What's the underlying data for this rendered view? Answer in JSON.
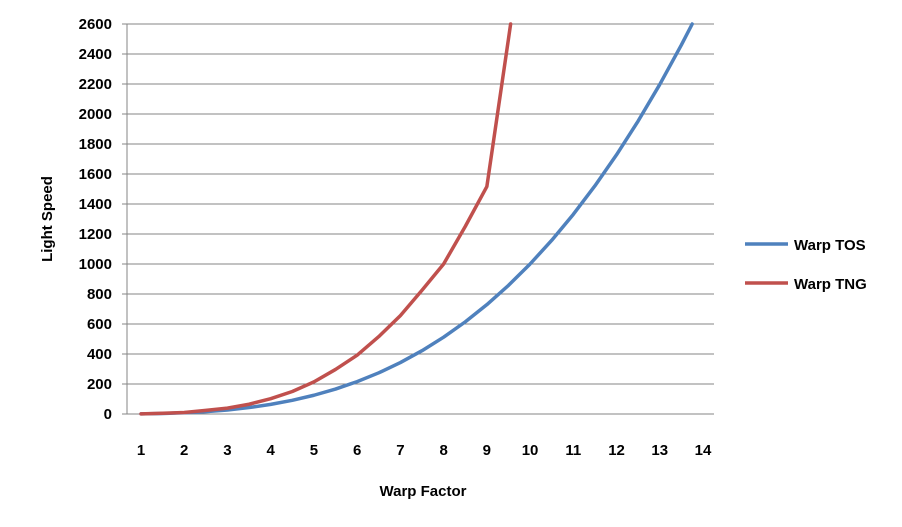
{
  "chart_data": {
    "type": "line",
    "xlabel": "Warp Factor",
    "ylabel": "Light Speed",
    "xlim": [
      1,
      14
    ],
    "ylim": [
      0,
      2600
    ],
    "x_ticks": [
      "1",
      "2",
      "3",
      "4",
      "5",
      "6",
      "7",
      "8",
      "9",
      "10",
      "11",
      "12",
      "13",
      "14"
    ],
    "y_ticks": [
      "0",
      "200",
      "400",
      "600",
      "800",
      "1000",
      "1200",
      "1400",
      "1600",
      "1800",
      "2000",
      "2200",
      "2400",
      "2600"
    ],
    "grid": true,
    "legend_position": "right",
    "series": [
      {
        "name": "Warp TOS",
        "color": "#4F81BD",
        "x": [
          1,
          1.5,
          2,
          2.5,
          3,
          3.5,
          4,
          4.5,
          5,
          5.5,
          6,
          6.5,
          7,
          7.5,
          8,
          8.5,
          9,
          9.5,
          10,
          10.5,
          11,
          11.5,
          12,
          12.5,
          13,
          13.5,
          13.75
        ],
        "y": [
          1,
          3.4,
          8,
          15.6,
          27,
          42.9,
          64,
          91.1,
          125,
          166.4,
          216,
          274.6,
          343,
          421.9,
          512,
          614.1,
          729,
          857.4,
          1000,
          1157.6,
          1331,
          1520.9,
          1728,
          1953.1,
          2197,
          2460.4,
          2600
        ]
      },
      {
        "name": "Warp TNG",
        "color": "#C0504D",
        "x": [
          1,
          1.5,
          2,
          2.5,
          3,
          3.5,
          4,
          4.5,
          5,
          5.5,
          6,
          6.5,
          7,
          7.5,
          8,
          8.5,
          9,
          9.5,
          9.55
        ],
        "y": [
          1,
          4.6,
          10,
          24,
          39,
          65,
          102,
          150,
          214,
          297,
          392,
          516,
          656,
          825,
          1000,
          1250,
          1516,
          2500,
          2600
        ]
      }
    ]
  }
}
